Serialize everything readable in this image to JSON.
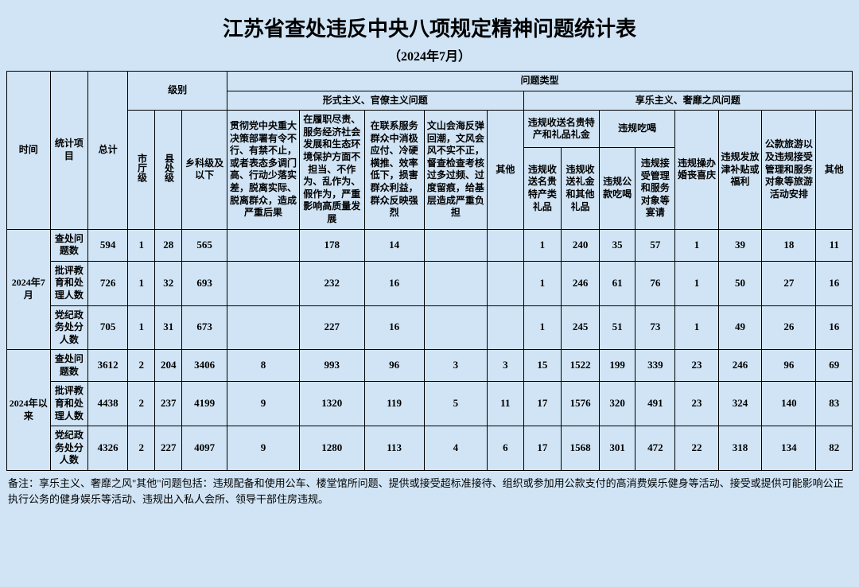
{
  "title": "江苏省查处违反中央八项规定精神问题统计表",
  "subtitle": "（2024年7月）",
  "headers": {
    "time": "时间",
    "item": "统计项目",
    "total": "总计",
    "level": "级别",
    "ptype": "问题类型",
    "cat1": "形式主义、官僚主义问题",
    "cat2": "享乐主义、奢靡之风问题",
    "lvl1": "市厅级",
    "lvl2": "县处级",
    "lvl3": "乡科级及以下",
    "p1": "贯彻党中央重大决策部署有令不行、有禁不止，或者表态多调门高、行动少落实差，脱离实际、脱离群众，造成严重后果",
    "p2": "在履职尽责、服务经济社会发展和生态环境保护方面不担当、不作为、乱作为、假作为，严重影响高质量发展",
    "p3": "在联系服务群众中消极应付、冷硬横推、效率低下，损害群众利益，群众反映强烈",
    "p4": "文山会海反弹回潮，文风会风不实不正，督查检查考核过多过频、过度留痕，给基层造成严重负担",
    "p5": "其他",
    "p6g": "违规收送名贵特产和礼品礼金",
    "p6": "违规收送名贵特产类礼品",
    "p7": "违规收送礼金和其他礼品",
    "p8g": "违规吃喝",
    "p8": "违规公款吃喝",
    "p9": "违规接受管理和服务对象等宴请",
    "p10": "违规操办婚丧喜庆",
    "p11": "违规发放津补贴或福利",
    "p12": "公款旅游以及违规接受管理和服务对象等旅游活动安排",
    "p13": "其他"
  },
  "rowlabels": {
    "period1": "2024年7月",
    "period2": "2024年以来",
    "r1": "查处问题数",
    "r2": "批评教育和处理人数",
    "r3": "党纪政务处分人数"
  },
  "data": {
    "period1": {
      "r1": [
        "594",
        "1",
        "28",
        "565",
        "",
        "178",
        "14",
        "",
        "",
        "1",
        "240",
        "35",
        "57",
        "1",
        "39",
        "18",
        "11"
      ],
      "r2": [
        "726",
        "1",
        "32",
        "693",
        "",
        "232",
        "16",
        "",
        "",
        "1",
        "246",
        "61",
        "76",
        "1",
        "50",
        "27",
        "16"
      ],
      "r3": [
        "705",
        "1",
        "31",
        "673",
        "",
        "227",
        "16",
        "",
        "",
        "1",
        "245",
        "51",
        "73",
        "1",
        "49",
        "26",
        "16"
      ]
    },
    "period2": {
      "r1": [
        "3612",
        "2",
        "204",
        "3406",
        "8",
        "993",
        "96",
        "3",
        "3",
        "15",
        "1522",
        "199",
        "339",
        "23",
        "246",
        "96",
        "69"
      ],
      "r2": [
        "4438",
        "2",
        "237",
        "4199",
        "9",
        "1320",
        "119",
        "5",
        "11",
        "17",
        "1576",
        "320",
        "491",
        "23",
        "324",
        "140",
        "83"
      ],
      "r3": [
        "4326",
        "2",
        "227",
        "4097",
        "9",
        "1280",
        "113",
        "4",
        "6",
        "17",
        "1568",
        "301",
        "472",
        "22",
        "318",
        "134",
        "82"
      ]
    }
  },
  "note": "备注：享乐主义、奢靡之风\"其他\"问题包括：违规配备和使用公车、楼堂馆所问题、提供或接受超标准接待、组织或参加用公款支付的高消费娱乐健身等活动、接受或提供可能影响公正执行公务的健身娱乐等活动、违规出入私人会所、领导干部住房违规。"
}
